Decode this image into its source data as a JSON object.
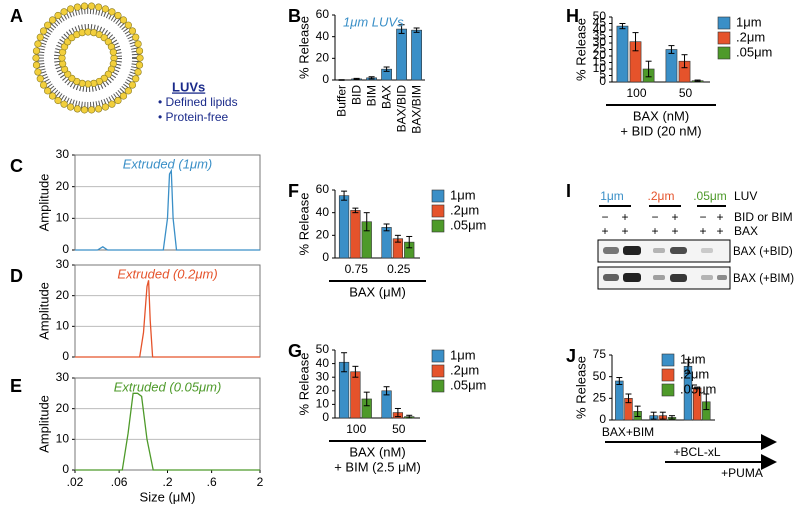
{
  "panel_labels": [
    "A",
    "B",
    "C",
    "D",
    "E",
    "F",
    "G",
    "H",
    "I",
    "J"
  ],
  "liposome": {
    "title": "LUVs",
    "bullets": [
      "• Defined lipids",
      "• Protein-free"
    ]
  },
  "blot": {
    "header": "LUV",
    "sizes": [
      {
        "label": "1μm",
        "color": "#3a8fc7"
      },
      {
        "label": ".2μm",
        "color": "#e5532b"
      },
      {
        "label": ".05μm",
        "color": "#4e9a2a"
      }
    ],
    "rows": [
      {
        "label": "BID or BIM",
        "marks": [
          "−",
          "+",
          "−",
          "+",
          "−",
          "+"
        ]
      },
      {
        "label": "BAX",
        "marks": [
          "+",
          "+",
          "+",
          "+",
          "+",
          "+"
        ]
      }
    ],
    "bands": [
      "BAX (+BID)",
      "BAX (+BIM)"
    ]
  },
  "chart_data": [
    {
      "type": "bar",
      "annotation": "1μm LUVs",
      "ylabel": "% Release",
      "color": "#3a8fc7",
      "categories": [
        "Buffer",
        "BID",
        "BIM",
        "BAX",
        "BAX/BID",
        "BAX/BIM"
      ],
      "values": [
        0,
        1,
        2,
        10,
        47,
        46
      ],
      "errors": [
        0.3,
        0.5,
        1,
        2,
        4,
        2
      ],
      "ylim": [
        0,
        60
      ],
      "yticks": [
        0,
        20,
        40,
        60
      ]
    },
    {
      "type": "line",
      "title": "Extruded (1μm)",
      "ylabel": "Amplitude",
      "color": "#3a8fc7",
      "log_x": true,
      "grid": true,
      "x": [
        0.02,
        0.035,
        0.04,
        0.045,
        0.05,
        0.18,
        0.2,
        0.21,
        0.22,
        0.23,
        0.25,
        2
      ],
      "values": [
        0,
        0,
        1,
        0,
        0,
        0,
        10,
        24,
        25,
        10,
        0,
        0
      ],
      "xlim": [
        0.02,
        2
      ],
      "ylim": [
        0,
        30
      ],
      "yticks": [
        0,
        10,
        20,
        30
      ]
    },
    {
      "type": "line",
      "title": "Extruded (0.2μm)",
      "ylabel": "Amplitude",
      "color": "#e5532b",
      "log_x": true,
      "grid": true,
      "x": [
        0.02,
        0.1,
        0.11,
        0.12,
        0.125,
        0.13,
        0.138,
        2
      ],
      "values": [
        0,
        0,
        8,
        23,
        25,
        12,
        0,
        0
      ],
      "xlim": [
        0.02,
        2
      ],
      "ylim": [
        0,
        30
      ],
      "yticks": [
        0,
        10,
        20,
        30
      ]
    },
    {
      "type": "line",
      "title": "Extruded (0.05μm)",
      "ylabel": "Amplitude",
      "xlabel": "Size (μM)",
      "color": "#4e9a2a",
      "log_x": true,
      "grid": true,
      "x": [
        0.02,
        0.065,
        0.075,
        0.085,
        0.095,
        0.105,
        0.12,
        0.14,
        2
      ],
      "values": [
        0,
        0,
        12,
        25,
        25,
        24,
        10,
        0,
        0
      ],
      "xlim": [
        0.02,
        2
      ],
      "ylim": [
        0,
        30
      ],
      "yticks": [
        0,
        10,
        20,
        30
      ],
      "xticks": [
        {
          "value": 0.02,
          "label": ".02"
        },
        {
          "value": 0.06,
          "label": ".06"
        },
        {
          "value": 0.2,
          "label": ".2"
        },
        {
          "value": 0.6,
          "label": ".6"
        },
        2
      ]
    },
    {
      "type": "bar",
      "ylabel": "% Release",
      "xlabel": [
        "BAX (μM)"
      ],
      "categories": [
        "0.75",
        "0.25"
      ],
      "series": [
        {
          "name": "1μm",
          "color": "#3a8fc7",
          "values": [
            55,
            27
          ],
          "errors": [
            4,
            3
          ]
        },
        {
          "name": ".2μm",
          "color": "#e5532b",
          "values": [
            42,
            17
          ],
          "errors": [
            2,
            3
          ]
        },
        {
          "name": ".05μm",
          "color": "#4e9a2a",
          "values": [
            32,
            14
          ],
          "errors": [
            8,
            5
          ]
        }
      ],
      "ylim": [
        0,
        60
      ],
      "yticks": [
        0,
        20,
        40,
        60
      ]
    },
    {
      "type": "bar",
      "ylabel": "% Release",
      "xlabel": [
        "BAX (nM)",
        "+ BIM (2.5 μM)"
      ],
      "categories": [
        "100",
        "50"
      ],
      "series": [
        {
          "name": "1μm",
          "color": "#3a8fc7",
          "values": [
            41,
            20
          ],
          "errors": [
            7,
            3
          ]
        },
        {
          "name": ".2μm",
          "color": "#e5532b",
          "values": [
            34,
            4
          ],
          "errors": [
            4,
            3
          ]
        },
        {
          "name": ".05μm",
          "color": "#4e9a2a",
          "values": [
            14,
            1
          ],
          "errors": [
            5,
            1
          ]
        }
      ],
      "ylim": [
        0,
        50
      ],
      "yticks": [
        0,
        10,
        20,
        30,
        40,
        50
      ]
    },
    {
      "type": "bar",
      "ylabel": "% Release",
      "xlabel": [
        "BAX (nM)",
        "+ BID (20 nM)"
      ],
      "categories": [
        "100",
        "50"
      ],
      "series": [
        {
          "name": "1μm",
          "color": "#3a8fc7",
          "values": [
            43,
            25
          ],
          "errors": [
            2,
            3
          ]
        },
        {
          "name": ".2μm",
          "color": "#e5532b",
          "values": [
            31,
            16
          ],
          "errors": [
            7,
            5
          ]
        },
        {
          "name": ".05μm",
          "color": "#4e9a2a",
          "values": [
            10,
            1
          ],
          "errors": [
            6,
            0.5
          ]
        }
      ],
      "ylim": [
        0,
        50
      ],
      "yticks": [
        0,
        5,
        10,
        15,
        20,
        25,
        30,
        35,
        40,
        45,
        50
      ]
    },
    {
      "type": "bar",
      "ylabel": "% Release",
      "categories": [
        "BAX+BIM",
        "+BCL-xL",
        "+PUMA"
      ],
      "series": [
        {
          "name": "1μm",
          "color": "#3a8fc7",
          "values": [
            45,
            5,
            62
          ],
          "errors": [
            4,
            4,
            8
          ]
        },
        {
          "name": ".2μm",
          "color": "#e5532b",
          "values": [
            25,
            5,
            37
          ],
          "errors": [
            5,
            4,
            1
          ]
        },
        {
          "name": ".05μm",
          "color": "#4e9a2a",
          "values": [
            10,
            3,
            21
          ],
          "errors": [
            6,
            2,
            9
          ]
        }
      ],
      "ylim": [
        0,
        75
      ],
      "yticks": [
        0,
        25,
        50,
        75
      ]
    }
  ]
}
